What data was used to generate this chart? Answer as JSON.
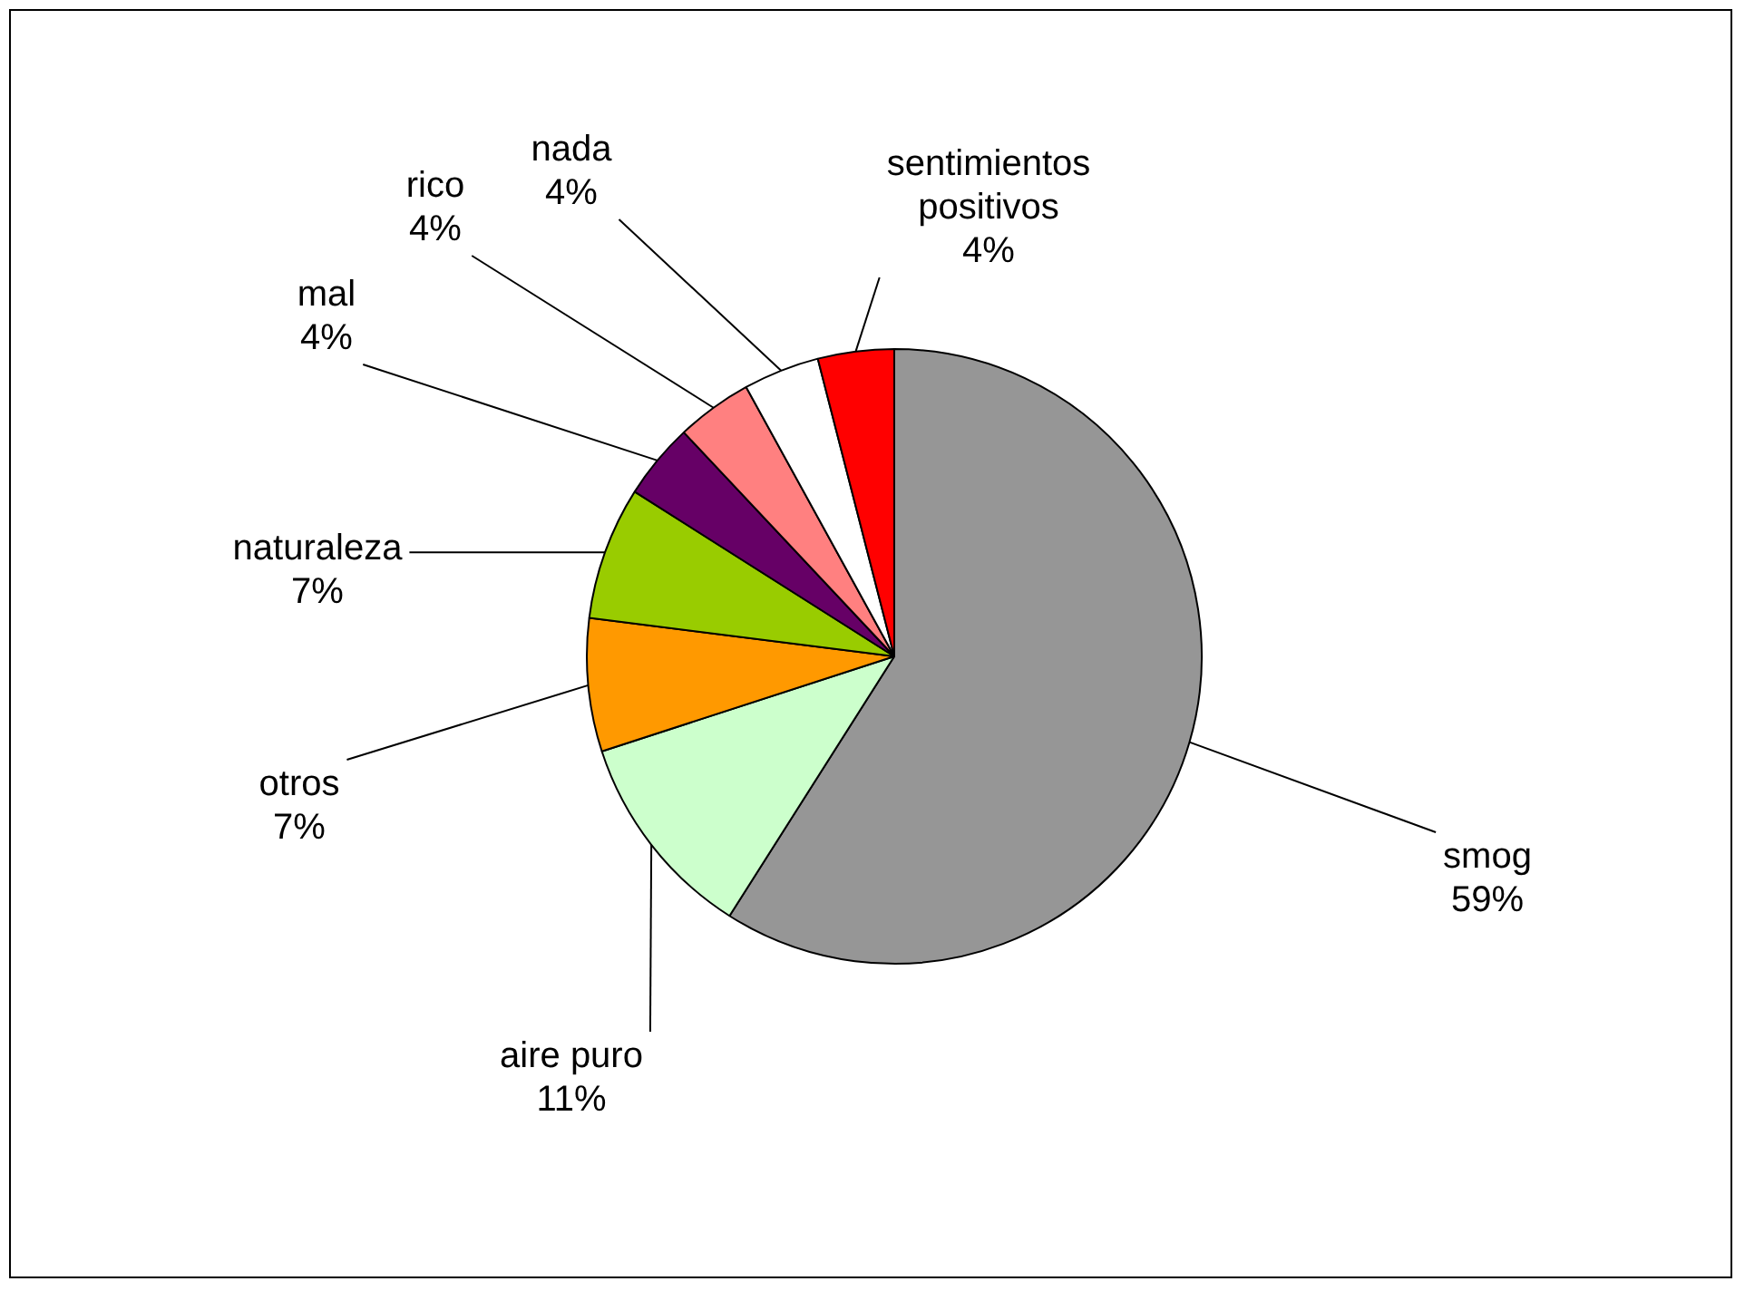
{
  "chart_data": {
    "type": "pie",
    "categories": [
      "smog",
      "aire puro",
      "otros",
      "naturaleza",
      "mal",
      "rico",
      "nada",
      "sentimientos positivos"
    ],
    "values": [
      59,
      11,
      7,
      7,
      4,
      4,
      4,
      4
    ],
    "value_labels": [
      "59%",
      "11%",
      "7%",
      "7%",
      "4%",
      "4%",
      "4%",
      "4%"
    ],
    "colors": [
      "#969696",
      "#ccffcc",
      "#ff9900",
      "#99cc00",
      "#660066",
      "#ff8080",
      "#ffffff",
      "#ff0000"
    ],
    "legend": false
  }
}
